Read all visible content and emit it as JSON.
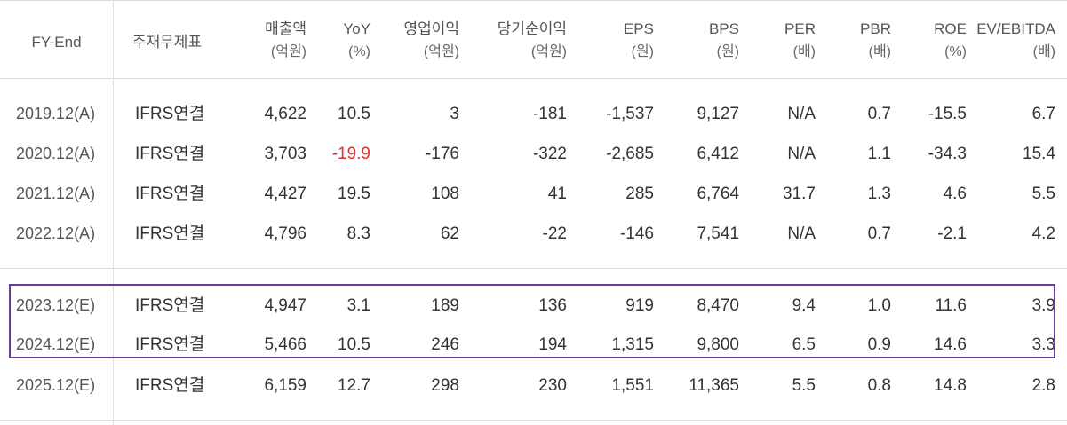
{
  "columns": [
    {
      "line1": "FY-End",
      "line2": ""
    },
    {
      "line1": "주재무제표",
      "line2": ""
    },
    {
      "line1": "매출액",
      "line2": "(억원)"
    },
    {
      "line1": "YoY",
      "line2": "(%)"
    },
    {
      "line1": "영업이익",
      "line2": "(억원)"
    },
    {
      "line1": "당기순이익",
      "line2": "(억원)"
    },
    {
      "line1": "EPS",
      "line2": "(원)"
    },
    {
      "line1": "BPS",
      "line2": "(원)"
    },
    {
      "line1": "PER",
      "line2": "(배)"
    },
    {
      "line1": "PBR",
      "line2": "(배)"
    },
    {
      "line1": "ROE",
      "line2": "(%)"
    },
    {
      "line1": "EV/EBITDA",
      "line2": "(배)"
    }
  ],
  "rows": [
    [
      "2019.12(A)",
      "IFRS연결",
      "4,622",
      "10.5",
      "3",
      "-181",
      "-1,537",
      "9,127",
      "N/A",
      "0.7",
      "-15.5",
      "6.7"
    ],
    [
      "2020.12(A)",
      "IFRS연결",
      "3,703",
      "-19.9",
      "-176",
      "-322",
      "-2,685",
      "6,412",
      "N/A",
      "1.1",
      "-34.3",
      "15.4"
    ],
    [
      "2021.12(A)",
      "IFRS연결",
      "4,427",
      "19.5",
      "108",
      "41",
      "285",
      "6,764",
      "31.7",
      "1.3",
      "4.6",
      "5.5"
    ],
    [
      "2022.12(A)",
      "IFRS연결",
      "4,796",
      "8.3",
      "62",
      "-22",
      "-146",
      "7,541",
      "N/A",
      "0.7",
      "-2.1",
      "4.2"
    ],
    [
      "2023.12(E)",
      "IFRS연결",
      "4,947",
      "3.1",
      "189",
      "136",
      "919",
      "8,470",
      "9.4",
      "1.0",
      "11.6",
      "3.9"
    ],
    [
      "2024.12(E)",
      "IFRS연결",
      "5,466",
      "10.5",
      "246",
      "194",
      "1,315",
      "9,800",
      "6.5",
      "0.9",
      "14.6",
      "3.3"
    ],
    [
      "2025.12(E)",
      "IFRS연결",
      "6,159",
      "12.7",
      "298",
      "230",
      "1,551",
      "11,365",
      "5.5",
      "0.8",
      "14.8",
      "2.8"
    ]
  ],
  "highlight_color": "#6a3a9a",
  "negative_yoy_color": "#e03030"
}
